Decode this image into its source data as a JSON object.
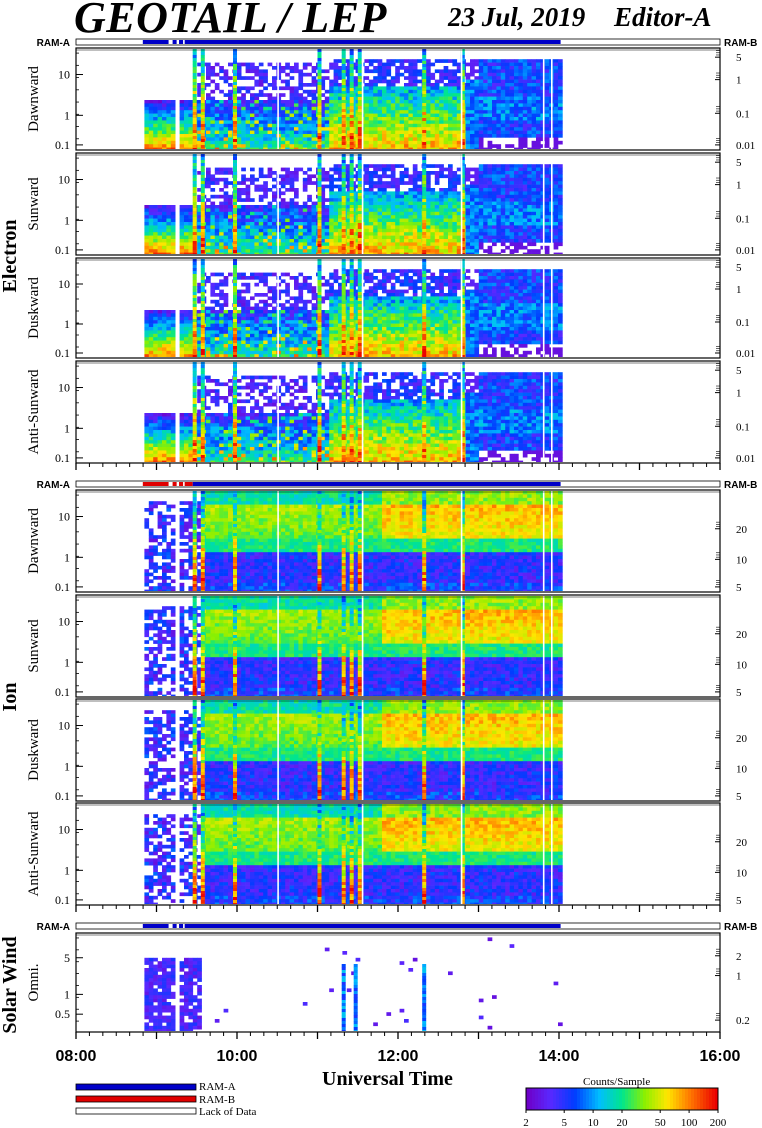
{
  "header": {
    "title": "GEOTAIL / LEP",
    "date": "23 Jul, 2019",
    "editor": "Editor-A"
  },
  "xaxis": {
    "label": "Universal Time",
    "ticks": [
      "08:00",
      "10:00",
      "12:00",
      "14:00",
      "16:00"
    ],
    "range_hours": [
      8,
      16
    ],
    "data_end_hour": 14.0
  },
  "ram_labels": {
    "left": "RAM-A",
    "right": "RAM-B"
  },
  "groups": [
    {
      "name": "Electron",
      "panels": [
        "Dawnward",
        "Sunward",
        "Duskward",
        "Anti-Sunward"
      ],
      "left_ticks": [
        "10",
        "1",
        "0.1"
      ],
      "right_ticks": [
        "5",
        "1",
        "0.1",
        "0.01"
      ]
    },
    {
      "name": "Ion",
      "panels": [
        "Dawnward",
        "Sunward",
        "Duskward",
        "Anti-Sunward"
      ],
      "left_ticks": [
        "10",
        "1",
        "0.1"
      ],
      "right_ticks": [
        "20",
        "10",
        "5"
      ]
    },
    {
      "name": "Solar Wind",
      "panels": [
        "Omni."
      ],
      "left_ticks": [
        "5",
        "1",
        "0.5"
      ],
      "right_ticks": [
        "2",
        "1",
        "0.2"
      ]
    }
  ],
  "legend": {
    "items": [
      {
        "label": "RAM-A",
        "color": "#0000c8"
      },
      {
        "label": "RAM-B",
        "color": "#e00000"
      },
      {
        "label": "Lack of Data",
        "color": "#ffffff"
      }
    ]
  },
  "colorbar": {
    "title": "Counts/Sample",
    "ticks": [
      "2",
      "5",
      "10",
      "20",
      "50",
      "100",
      "200"
    ]
  },
  "chart_data": {
    "type": "heatmap",
    "title": "GEOTAIL / LEP",
    "xlabel": "Universal Time",
    "x_range": [
      "08:00",
      "16:00"
    ],
    "colorbar_range": [
      2,
      200
    ],
    "colorbar_label": "Counts/Sample",
    "panels": [
      "Electron Dawnward",
      "Electron Sunward",
      "Electron Duskward",
      "Electron Anti-Sunward",
      "Ion Dawnward",
      "Ion Sunward",
      "Ion Duskward",
      "Ion Anti-Sunward",
      "Solar Wind Omni."
    ]
  }
}
